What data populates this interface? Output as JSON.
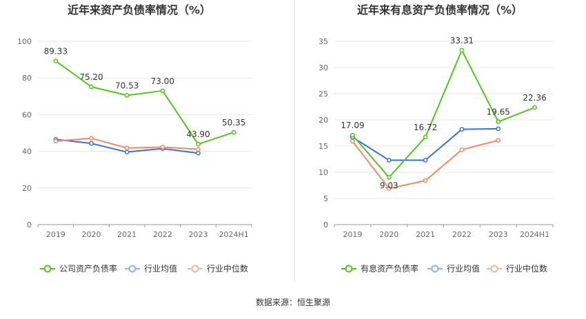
{
  "colors": {
    "company": "#52c41a",
    "industry_avg": "#3b6fd8",
    "industry_median": "#f08a61",
    "legend_avg": "#8ab4f0",
    "legend_median": "#f5b69a",
    "grid": "#e6e6e6",
    "axis_text": "#666666",
    "title": "#333333"
  },
  "source_text": "数据来源：恒生聚源",
  "chart_data": [
    {
      "type": "line",
      "title": "近年来资产负债率情况（%）",
      "categories": [
        "2019",
        "2020",
        "2021",
        "2022",
        "2023",
        "2024H1"
      ],
      "ylim": [
        0,
        100
      ],
      "yticks": [
        0,
        20,
        40,
        60,
        80,
        100
      ],
      "grid": true,
      "legend_position": "bottom",
      "series": [
        {
          "name": "公司资产负债率",
          "color_key": "company",
          "values": [
            89.33,
            75.2,
            70.53,
            73.0,
            43.9,
            50.35
          ],
          "labels": [
            "89.33",
            "75.20",
            "70.53",
            "73.00",
            "43.90",
            "50.35"
          ]
        },
        {
          "name": "行业均值",
          "color_key": "industry_avg",
          "values": [
            46.5,
            44.3,
            39.6,
            41.5,
            39.0,
            null
          ]
        },
        {
          "name": "行业中位数",
          "color_key": "industry_median",
          "values": [
            45.6,
            47.1,
            41.8,
            42.3,
            41.1,
            null
          ]
        }
      ]
    },
    {
      "type": "line",
      "title": "近年来有息资产负债率情况（%）",
      "categories": [
        "2019",
        "2020",
        "2021",
        "2022",
        "2023",
        "2024H1"
      ],
      "ylim": [
        0,
        35
      ],
      "yticks": [
        0,
        5,
        10,
        15,
        20,
        25,
        30,
        35
      ],
      "grid": true,
      "legend_position": "bottom",
      "series": [
        {
          "name": "有息资产负债率",
          "color_key": "company",
          "values": [
            17.09,
            9.03,
            16.72,
            33.31,
            19.65,
            22.36
          ],
          "labels": [
            "17.09",
            "9.03",
            "16.72",
            "33.31",
            "19.65",
            "22.36"
          ]
        },
        {
          "name": "行业均值",
          "color_key": "industry_avg",
          "values": [
            16.7,
            12.3,
            12.3,
            18.2,
            18.3,
            null
          ]
        },
        {
          "name": "行业中位数",
          "color_key": "industry_median",
          "values": [
            15.9,
            6.9,
            8.4,
            14.3,
            16.1,
            null
          ]
        }
      ]
    }
  ]
}
